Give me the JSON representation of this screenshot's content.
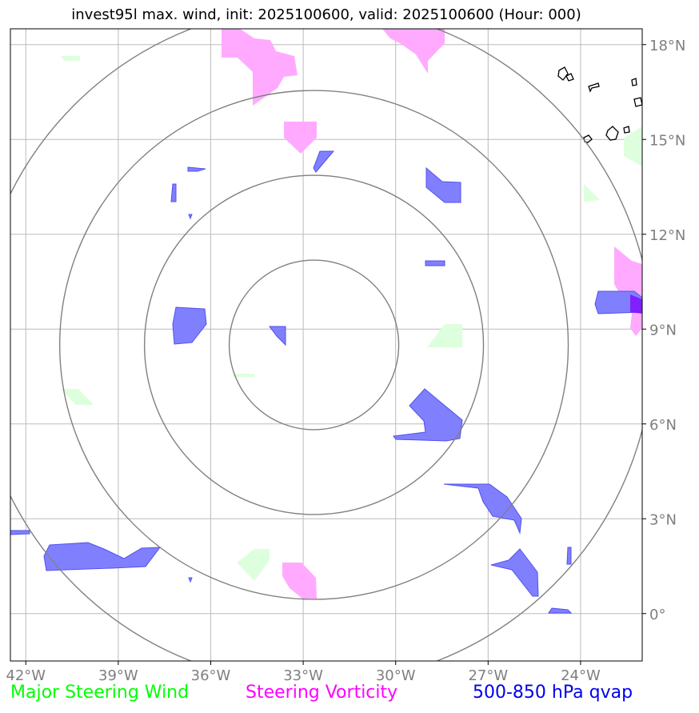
{
  "title": "invest95l max. wind, init: 2025100600, valid: 2025100600 (Hour: 000)",
  "map": {
    "lon_range": [
      -42.5,
      -22.0
    ],
    "lat_range": [
      -1.5,
      18.5
    ],
    "center": {
      "lon": -32.65,
      "lat": 8.5
    },
    "lon_ticks": [
      {
        "value": -42,
        "label": "42°W"
      },
      {
        "value": -39,
        "label": "39°W"
      },
      {
        "value": -36,
        "label": "36°W"
      },
      {
        "value": -33,
        "label": "33°W"
      },
      {
        "value": -30,
        "label": "30°W"
      },
      {
        "value": -27,
        "label": "27°W"
      },
      {
        "value": -24,
        "label": "24°W"
      }
    ],
    "lat_ticks": [
      {
        "value": 18,
        "label": "18°N"
      },
      {
        "value": 15,
        "label": "15°N"
      },
      {
        "value": 12,
        "label": "12°N"
      },
      {
        "value": 9,
        "label": "9°N"
      },
      {
        "value": 6,
        "label": "6°N"
      },
      {
        "value": 3,
        "label": "3°N"
      },
      {
        "value": 0,
        "label": "0°"
      }
    ],
    "range_rings_deg": [
      2.75,
      5.5,
      8.25,
      11.0
    ]
  },
  "legend": {
    "wind": {
      "label": "Major Steering Wind",
      "color": "#00ff00"
    },
    "vorticity": {
      "label": "Steering Vorticity",
      "color": "#ff00ff"
    },
    "qvap": {
      "label": "500-850 hPa qvap",
      "color": "#0000ee"
    }
  },
  "colors": {
    "qvap_fill": "#8080ff",
    "qvap_edge": "#5050ee",
    "vort_fill": "#ffaaff",
    "wind_fill": "#ddffdd",
    "grid": "#bbbbbb",
    "ring": "#808080",
    "coast": "#000000"
  }
}
